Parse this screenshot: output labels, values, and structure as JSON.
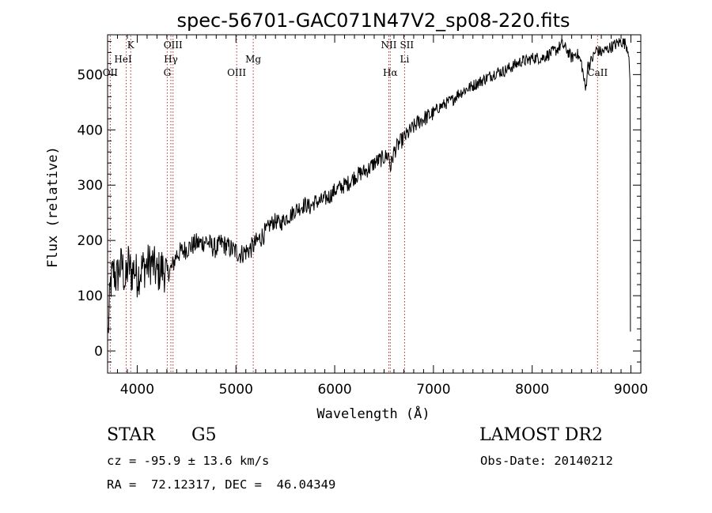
{
  "chart_data": {
    "type": "line",
    "title": "spec-56701-GAC071N47V2_sp08-220.fits",
    "xlabel": "Wavelength (Å)",
    "ylabel": "Flux (relative)",
    "xlim": [
      3700,
      9100
    ],
    "ylim": [
      -40,
      572
    ],
    "xticks": [
      4000,
      5000,
      6000,
      7000,
      8000,
      9000
    ],
    "yticks": [
      0,
      100,
      200,
      300,
      400,
      500
    ],
    "grid": false,
    "series": [
      {
        "x": [
          3705,
          3730,
          3760,
          3790,
          3820,
          3850,
          3880,
          3910,
          3940,
          3970,
          4000,
          4050,
          4100,
          4150,
          4200,
          4250,
          4300,
          4350,
          4400,
          4450,
          4500,
          4550,
          4600,
          4650,
          4700,
          4750,
          4800,
          4850,
          4900,
          4950,
          5000,
          5050,
          5100,
          5150,
          5200,
          5250,
          5300,
          5350,
          5400,
          5450,
          5500,
          5550,
          5600,
          5650,
          5700,
          5750,
          5800,
          5850,
          5900,
          5950,
          6000,
          6050,
          6100,
          6150,
          6200,
          6250,
          6300,
          6350,
          6400,
          6450,
          6500,
          6550,
          6563,
          6600,
          6650,
          6700,
          6750,
          6800,
          6850,
          6900,
          6950,
          7000,
          7050,
          7100,
          7150,
          7200,
          7250,
          7300,
          7350,
          7400,
          7450,
          7500,
          7550,
          7600,
          7650,
          7700,
          7750,
          7800,
          7850,
          7900,
          7950,
          8000,
          8050,
          8100,
          8150,
          8200,
          8250,
          8300,
          8350,
          8400,
          8450,
          8500,
          8542,
          8560,
          8600,
          8650,
          8700,
          8750,
          8800,
          8850,
          8900,
          8950,
          8980,
          8990,
          8995
        ],
        "y": [
          30,
          120,
          145,
          130,
          150,
          155,
          120,
          160,
          140,
          150,
          135,
          150,
          155,
          160,
          140,
          150,
          140,
          150,
          175,
          180,
          185,
          190,
          195,
          195,
          200,
          190,
          185,
          195,
          190,
          185,
          180,
          175,
          180,
          185,
          195,
          205,
          215,
          230,
          235,
          230,
          240,
          245,
          255,
          260,
          265,
          260,
          270,
          270,
          275,
          280,
          290,
          295,
          300,
          305,
          315,
          320,
          325,
          330,
          340,
          345,
          350,
          355,
          330,
          360,
          375,
          385,
          395,
          405,
          415,
          420,
          425,
          430,
          440,
          445,
          450,
          455,
          465,
          470,
          475,
          480,
          485,
          490,
          495,
          500,
          505,
          505,
          510,
          515,
          520,
          525,
          525,
          530,
          530,
          530,
          535,
          540,
          545,
          555,
          545,
          530,
          540,
          520,
          470,
          515,
          525,
          545,
          540,
          545,
          550,
          555,
          560,
          555,
          540,
          480,
          30
        ]
      }
    ],
    "spectral_lines": [
      {
        "label": "OII",
        "wavelength": 3727
      },
      {
        "label": "K",
        "wavelength": 3934
      },
      {
        "label": "HeI",
        "wavelength": 3889
      },
      {
        "label": "G",
        "wavelength": 4304
      },
      {
        "label": "Hγ",
        "wavelength": 4341
      },
      {
        "label": "OIII",
        "wavelength": 4363
      },
      {
        "label": "OIII",
        "wavelength": 5007
      },
      {
        "label": "Mg",
        "wavelength": 5175
      },
      {
        "label": "NII",
        "wavelength": 6548
      },
      {
        "label": "Hα",
        "wavelength": 6563
      },
      {
        "label": "Li",
        "wavelength": 6708
      },
      {
        "label": "SII",
        "wavelength": 6731
      },
      {
        "label": "CaII",
        "wavelength": 8662
      }
    ]
  },
  "info": {
    "object_type": "STAR",
    "subclass": "G5",
    "survey": "LAMOST DR2",
    "cz": "cz = -95.9 ± 13.6 km/s",
    "obs_date": "Obs-Date: 20140212",
    "coords": "RA =  72.12317, DEC =  46.04349"
  }
}
